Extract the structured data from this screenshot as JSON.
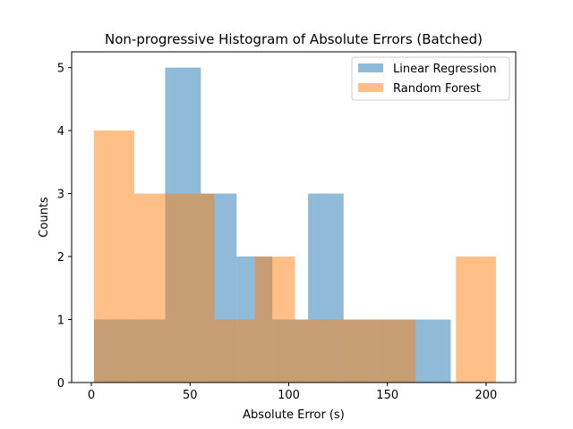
{
  "chart_data": {
    "type": "histogram",
    "title": "Non-progressive Histogram of Absolute Errors (Batched)",
    "xlabel": "Absolute Error (s)",
    "ylabel": "Counts",
    "xlim": [
      -10,
      215
    ],
    "ylim": [
      0,
      5.25
    ],
    "xticks": [
      0,
      50,
      100,
      150,
      200
    ],
    "yticks": [
      0,
      1,
      2,
      3,
      4,
      5
    ],
    "grid": false,
    "legend_position": "top-right",
    "alpha": 0.5,
    "series": [
      {
        "name": "Linear Regression",
        "color": "#1f77b4",
        "bins": [
          {
            "x0": 1.3,
            "x1": 19.4,
            "count": 1
          },
          {
            "x0": 19.4,
            "x1": 37.4,
            "count": 1
          },
          {
            "x0": 37.4,
            "x1": 55.5,
            "count": 5
          },
          {
            "x0": 55.5,
            "x1": 73.6,
            "count": 3
          },
          {
            "x0": 73.6,
            "x1": 91.7,
            "count": 2
          },
          {
            "x0": 91.7,
            "x1": 109.8,
            "count": 1
          },
          {
            "x0": 109.8,
            "x1": 127.8,
            "count": 3
          },
          {
            "x0": 127.8,
            "x1": 145.9,
            "count": 1
          },
          {
            "x0": 145.9,
            "x1": 164.0,
            "count": 1
          },
          {
            "x0": 164.0,
            "x1": 182.1,
            "count": 1
          }
        ]
      },
      {
        "name": "Random Forest",
        "color": "#ff7f0e",
        "bins": [
          {
            "x0": 1.3,
            "x1": 21.7,
            "count": 4
          },
          {
            "x0": 21.7,
            "x1": 42.0,
            "count": 3
          },
          {
            "x0": 42.0,
            "x1": 62.4,
            "count": 3
          },
          {
            "x0": 62.4,
            "x1": 82.8,
            "count": 1
          },
          {
            "x0": 82.8,
            "x1": 103.2,
            "count": 2
          },
          {
            "x0": 103.2,
            "x1": 123.5,
            "count": 1
          },
          {
            "x0": 123.5,
            "x1": 143.9,
            "count": 1
          },
          {
            "x0": 143.9,
            "x1": 164.3,
            "count": 1
          },
          {
            "x0": 164.3,
            "x1": 184.7,
            "count": 0
          },
          {
            "x0": 184.7,
            "x1": 205.0,
            "count": 2
          }
        ]
      }
    ]
  }
}
